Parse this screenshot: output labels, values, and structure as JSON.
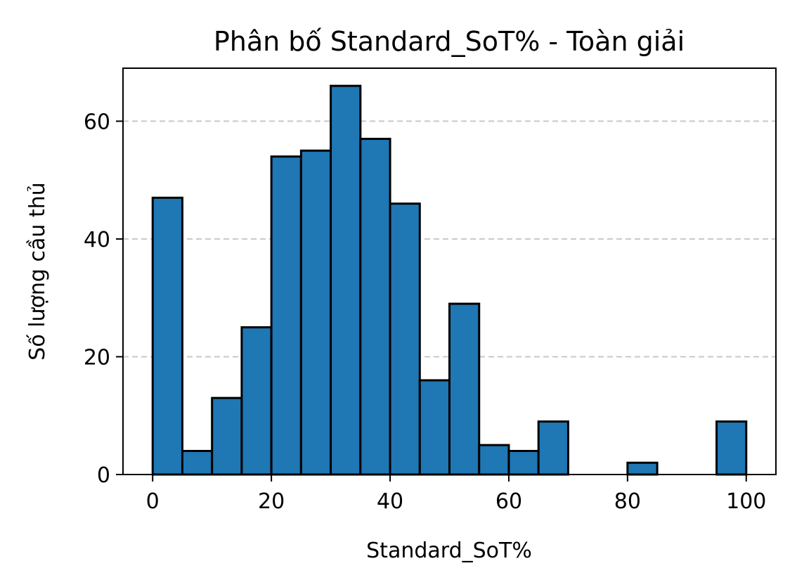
{
  "chart_data": {
    "type": "bar",
    "title": "Phân bố Standard_SoT% - Toàn giải",
    "xlabel": "Standard_SoT%",
    "ylabel": "Số lượng cầu thủ",
    "bin_edges": [
      0,
      5,
      10,
      15,
      20,
      25,
      30,
      35,
      40,
      45,
      50,
      55,
      60,
      65,
      70,
      75,
      80,
      85,
      90,
      95,
      100
    ],
    "values": [
      47,
      4,
      13,
      25,
      54,
      55,
      66,
      57,
      46,
      16,
      29,
      5,
      4,
      9,
      0,
      0,
      2,
      0,
      0,
      9
    ],
    "xlim": [
      -5,
      105
    ],
    "ylim": [
      0,
      69
    ],
    "xticks": [
      0,
      20,
      40,
      60,
      80,
      100
    ],
    "yticks": [
      0,
      20,
      40,
      60
    ],
    "grid": "y, dashed",
    "bar_color": "#1f77b4",
    "edge_color": "#000000",
    "grid_color": "#c8c8c8"
  }
}
